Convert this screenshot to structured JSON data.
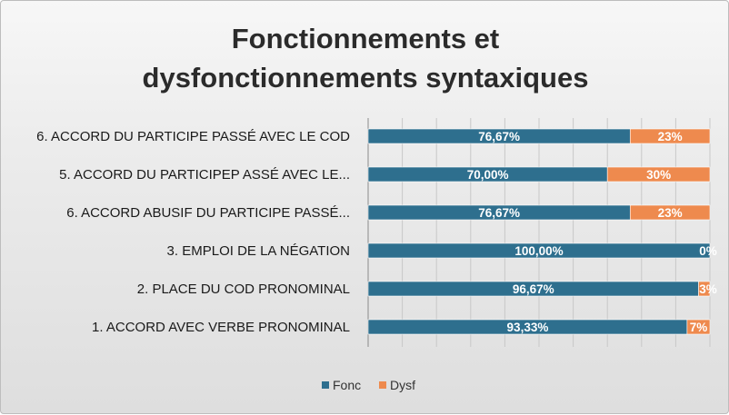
{
  "chart_data": {
    "type": "bar",
    "orientation": "horizontal",
    "stacked": true,
    "percent_stacked": true,
    "title_lines": [
      "Fonctionnements et",
      "dysfonctionnements syntaxiques"
    ],
    "categories": [
      "6. ACCORD DU PARTICIPE PASSÉ AVEC LE COD",
      "5. ACCORD DU PARTICIPEP ASSÉ AVEC LE...",
      "6. ACCORD ABUSIF DU PARTICIPE PASSÉ...",
      "3. EMPLOI DE LA NÉGATION",
      "2. PLACE DU COD PRONOMINAL",
      "1. ACCORD AVEC VERBE PRONOMINAL"
    ],
    "series": [
      {
        "name": "Fonc",
        "color": "#2e6f8e",
        "values": [
          76.67,
          70.0,
          76.67,
          100.0,
          96.67,
          93.33
        ],
        "labels": [
          "76,67%",
          "70,00%",
          "76,67%",
          "100,00%",
          "96,67%",
          "93,33%"
        ]
      },
      {
        "name": "Dysf",
        "color": "#ee8a4e",
        "values": [
          23.33,
          30.0,
          23.33,
          0.0,
          3.33,
          6.67
        ],
        "labels": [
          "23%",
          "30%",
          "23%",
          "0%",
          "3%",
          "7%"
        ]
      }
    ],
    "xlim": [
      0,
      100
    ],
    "grid": true,
    "legend": "bottom"
  }
}
